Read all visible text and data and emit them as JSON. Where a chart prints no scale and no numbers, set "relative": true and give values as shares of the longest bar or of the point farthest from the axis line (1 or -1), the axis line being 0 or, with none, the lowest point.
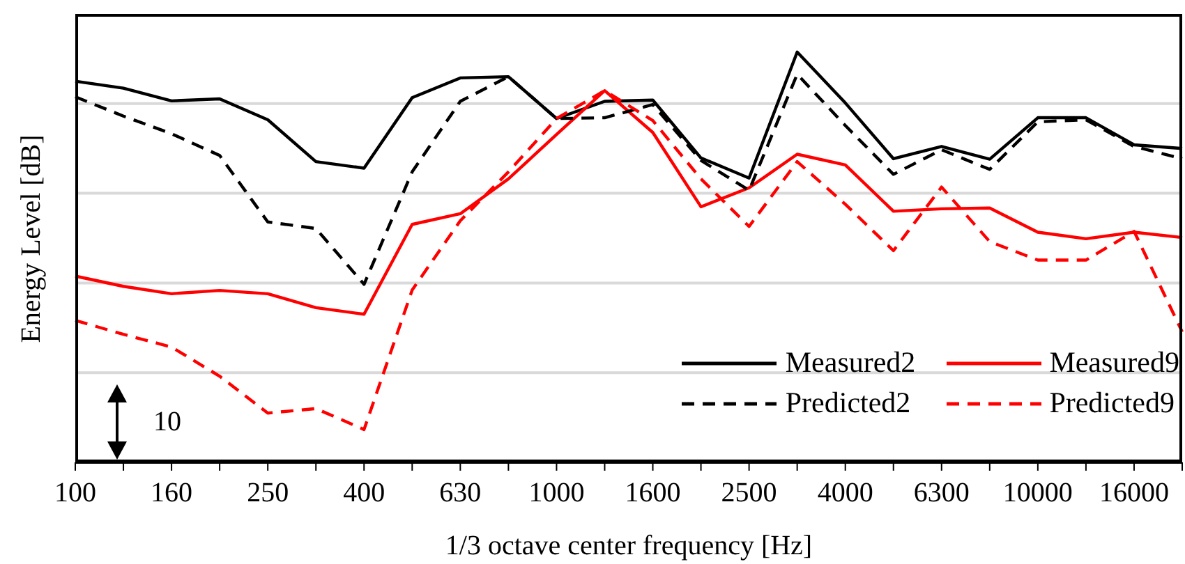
{
  "chart_data": {
    "type": "line",
    "relative": true,
    "xlabel": "1/3 octave center frequency [Hz]",
    "ylabel": "Energy Level [dB]",
    "categories": [
      "100",
      null,
      "160",
      null,
      "250",
      null,
      "400",
      null,
      "630",
      null,
      "1000",
      null,
      "1600",
      null,
      "2500",
      null,
      "4000",
      null,
      "6300",
      null,
      "10000",
      null,
      "16000",
      null
    ],
    "series": [
      {
        "name": "Measured2",
        "color": "#000000",
        "line_style": "solid",
        "values": [
          0.929,
          0.912,
          0.881,
          0.886,
          0.835,
          0.733,
          0.717,
          0.889,
          0.937,
          0.94,
          0.838,
          0.88,
          0.883,
          0.742,
          0.693,
          1.0,
          0.876,
          0.74,
          0.77,
          0.739,
          0.84,
          0.84,
          0.774,
          0.765
        ]
      },
      {
        "name": "Measured9",
        "color": "#ff0000",
        "line_style": "solid",
        "values": [
          0.454,
          0.429,
          0.411,
          0.419,
          0.411,
          0.377,
          0.361,
          0.58,
          0.606,
          0.691,
          0.799,
          0.906,
          0.804,
          0.623,
          0.669,
          0.751,
          0.725,
          0.612,
          0.618,
          0.62,
          0.561,
          0.545,
          0.561,
          0.548
        ]
      },
      {
        "name": "Predicted2",
        "color": "#000000",
        "line_style": "dashed",
        "values": [
          0.891,
          0.844,
          0.801,
          0.748,
          0.586,
          0.57,
          0.434,
          0.708,
          0.88,
          0.94,
          0.838,
          0.84,
          0.872,
          0.736,
          0.663,
          0.946,
          0.821,
          0.702,
          0.762,
          0.714,
          0.83,
          0.835,
          0.77,
          0.74
        ]
      },
      {
        "name": "Predicted9",
        "color": "#ff0000",
        "line_style": "dashed",
        "values": [
          0.346,
          0.312,
          0.281,
          0.21,
          0.12,
          0.131,
          0.08,
          0.42,
          0.589,
          0.708,
          0.838,
          0.906,
          0.833,
          0.691,
          0.575,
          0.733,
          0.629,
          0.516,
          0.671,
          0.538,
          0.493,
          0.493,
          0.563,
          0.318
        ]
      }
    ],
    "annotations": [
      "10"
    ],
    "grid": "y",
    "legend": "bottom right",
    "marker": "none"
  }
}
